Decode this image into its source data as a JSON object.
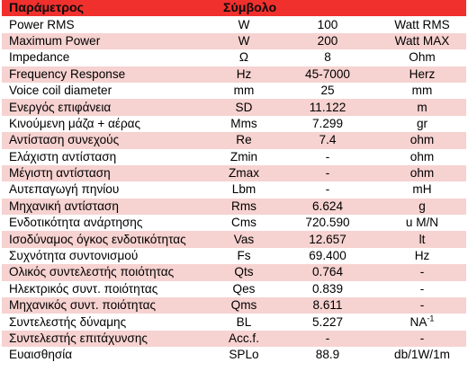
{
  "table": {
    "headers": [
      "Παράμετρος",
      "Σύμβολο",
      "",
      ""
    ],
    "rows": [
      [
        "Power RMS",
        "W",
        "100",
        "Watt RMS"
      ],
      [
        "Maximum Power",
        "W",
        "200",
        "Watt MAX"
      ],
      [
        "Impedance",
        "Ω",
        "8",
        "Ohm"
      ],
      [
        "Frequency Response",
        "Hz",
        "45-7000",
        "Herz"
      ],
      [
        "Voice coil diameter",
        "mm",
        "25",
        "mm"
      ],
      [
        "Ενεργός επιφάνεια",
        "SD",
        "11.122",
        "m"
      ],
      [
        "Κινούμενη μάζα + αέρας",
        "Mms",
        "7.299",
        "gr"
      ],
      [
        "Αντίσταση συνεχούς",
        "Re",
        "7.4",
        "ohm"
      ],
      [
        "Ελάχιστη αντίσταση",
        "Zmin",
        "-",
        "ohm"
      ],
      [
        "Μέγιστη αντίσταση",
        "Zmax",
        "-",
        "ohm"
      ],
      [
        "Αυτεπαγωγή πηνίου",
        "Lbm",
        "-",
        "mH"
      ],
      [
        "Μηχανική αντίσταση",
        "Rms",
        "6.624",
        "g"
      ],
      [
        "Ενδοτικότητα ανάρτησης",
        "Cms",
        "720.590",
        "u M/N"
      ],
      [
        "Ισοδύναμος όγκος ενδοτικότητας",
        "Vas",
        "12.657",
        "lt"
      ],
      [
        "Συχνότητα συντονισμού",
        "Fs",
        "69.400",
        "Hz"
      ],
      [
        "Ολικός συντελεστής ποιότητας",
        "Qts",
        "0.764",
        "-"
      ],
      [
        "Ηλεκτρικός συντ. ποιότητας",
        "Qes",
        "0.839",
        "-"
      ],
      [
        "Μηχανικός συντ. ποιότητας",
        "Qms",
        "8.611",
        "-"
      ],
      [
        "Συντελεστής δύναμης",
        "BL",
        "5.227",
        "NA"
      ],
      [
        "Συντελεστής επιτάχυνσης",
        "Acc.f.",
        "-",
        "-"
      ],
      [
        "Ευαισθησία",
        "SPLo",
        "88.9",
        "db/1W/1m"
      ]
    ],
    "bl_unit_superscript": "-1"
  }
}
